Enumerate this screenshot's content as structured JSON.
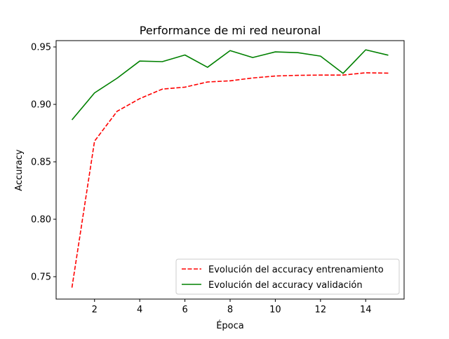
{
  "chart_data": {
    "type": "line",
    "title": "Performance de mi red neuronal",
    "xlabel": "Época",
    "ylabel": "Accuracy",
    "xlim": [
      0.3,
      15.7
    ],
    "ylim": [
      0.7305,
      0.9555
    ],
    "x_ticks": [
      2,
      4,
      6,
      8,
      10,
      12,
      14
    ],
    "y_ticks": [
      0.75,
      0.8,
      0.85,
      0.9,
      0.95
    ],
    "x_tick_labels": [
      "2",
      "4",
      "6",
      "8",
      "10",
      "12",
      "14"
    ],
    "y_tick_labels": [
      "0.75",
      "0.80",
      "0.85",
      "0.90",
      "0.95"
    ],
    "grid": false,
    "legend_position": "lower-right",
    "x": [
      1,
      2,
      3,
      4,
      5,
      6,
      7,
      8,
      9,
      10,
      11,
      12,
      13,
      14,
      15
    ],
    "series": [
      {
        "name": "Evolución del accuracy entrenamiento",
        "color": "#ff0000",
        "style": "dashed",
        "values": [
          0.7405,
          0.868,
          0.894,
          0.905,
          0.9133,
          0.915,
          0.9195,
          0.9205,
          0.923,
          0.9247,
          0.9253,
          0.9255,
          0.9255,
          0.9275,
          0.9272
        ]
      },
      {
        "name": "Evolución del accuracy validación",
        "color": "#008000",
        "style": "solid",
        "values": [
          0.8865,
          0.91,
          0.9228,
          0.9377,
          0.9372,
          0.943,
          0.9323,
          0.9468,
          0.9408,
          0.9457,
          0.945,
          0.942,
          0.927,
          0.9475,
          0.9428
        ]
      }
    ]
  }
}
